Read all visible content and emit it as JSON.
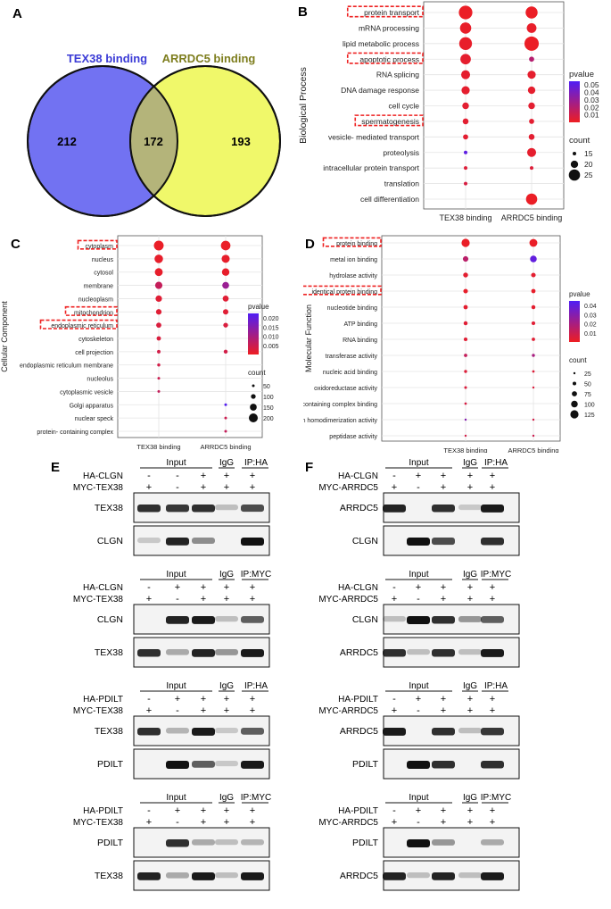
{
  "panels": {
    "A": {
      "letter": "A",
      "left_title": "TEX38 binding",
      "right_title": "ARRDC5 binding",
      "left_only": "212",
      "overlap": "172",
      "right_only": "193",
      "left_color": "#7272f2",
      "right_color": "#f0f86a",
      "overlap_color": "#b4b47a"
    },
    "B": {
      "letter": "B"
    },
    "C": {
      "letter": "C"
    },
    "D": {
      "letter": "D"
    },
    "E": {
      "letter": "E"
    },
    "F": {
      "letter": "F"
    }
  },
  "chart_data": [
    {
      "panel": "B",
      "type": "scatter",
      "ylabel": "Biological Process",
      "categories": [
        "TEX38 binding",
        "ARRDC5 binding"
      ],
      "terms": [
        "protein transport",
        "mRNA processing",
        "lipid metabolic process",
        "apoptotic process",
        "RNA splicing",
        "DNA damage response",
        "cell cycle",
        "spermatogenesis",
        "vesicle- mediated transport",
        "proteolysis",
        "intracellular protein transport",
        "translation",
        "cell differentiation"
      ],
      "highlighted": [
        "protein transport",
        "apoptotic process",
        "spermatogenesis"
      ],
      "series": [
        {
          "category": "TEX38 binding",
          "count": [
            28,
            25,
            27,
            24,
            22,
            21,
            19,
            18,
            17,
            15,
            11,
            10,
            null
          ],
          "pvalue": [
            0.001,
            0.002,
            0.002,
            0.003,
            0.003,
            0.003,
            0.004,
            0.004,
            0.004,
            0.05,
            0.006,
            0.008,
            null
          ]
        },
        {
          "category": "ARRDC5 binding",
          "count": [
            26,
            23,
            29,
            17,
            21,
            20,
            19,
            17,
            18,
            22,
            15,
            null,
            25
          ],
          "pvalue": [
            0.001,
            0.002,
            0.001,
            0.02,
            0.003,
            0.003,
            0.004,
            0.004,
            0.004,
            0.003,
            0.006,
            null,
            0.001
          ]
        }
      ],
      "legend_pvalue": {
        "title": "pvalue",
        "ticks": [
          "0.05",
          "0.04",
          "0.03",
          "0.02",
          "0.01"
        ]
      },
      "legend_count": {
        "title": "count",
        "labels": [
          "15",
          "20",
          "25"
        ],
        "values": [
          15,
          20,
          25
        ]
      }
    },
    {
      "panel": "C",
      "type": "scatter",
      "ylabel": "Cellular Component",
      "categories": [
        "TEX38 binding",
        "ARRDC5 binding"
      ],
      "terms": [
        "cytoplasm",
        "nucleus",
        "cytosol",
        "membrane",
        "nucleoplasm",
        "mitochondrion",
        "endoplasmic reticulum",
        "cytoskeleton",
        "cell projection",
        "endoplasmic reticulum membrane",
        "nucleolus",
        "cytoplasmic vesicle",
        "Golgi apparatus",
        "nuclear speck",
        "protein- containing complex"
      ],
      "highlighted": [
        "cytoplasm",
        "mitochondrion",
        "endoplasmic reticulum"
      ],
      "series": [
        {
          "category": "TEX38 binding",
          "count": [
            220,
            190,
            175,
            160,
            140,
            120,
            110,
            90,
            70,
            60,
            50,
            40,
            null,
            null,
            null
          ],
          "pvalue": [
            0.0005,
            0.001,
            0.001,
            0.006,
            0.002,
            0.002,
            0.003,
            0.003,
            0.004,
            0.004,
            0.005,
            0.006,
            null,
            null,
            null
          ]
        },
        {
          "category": "ARRDC5 binding",
          "count": [
            215,
            180,
            165,
            150,
            130,
            115,
            100,
            null,
            80,
            null,
            null,
            null,
            45,
            40,
            40
          ],
          "pvalue": [
            0.0005,
            0.001,
            0.001,
            0.012,
            0.002,
            0.002,
            0.003,
            null,
            0.004,
            null,
            null,
            null,
            0.022,
            0.005,
            0.006
          ]
        }
      ],
      "legend_pvalue": {
        "title": "pvalue",
        "ticks": [
          "0.020",
          "0.015",
          "0.010",
          "0.005"
        ]
      },
      "legend_count": {
        "title": "count",
        "labels": [
          "50",
          "100",
          "150",
          "200"
        ],
        "values": [
          50,
          100,
          150,
          200
        ]
      }
    },
    {
      "panel": "D",
      "type": "scatter",
      "ylabel": "Molecular Function",
      "categories": [
        "TEX38 binding",
        "ARRDC5 binding"
      ],
      "terms": [
        "protein binding",
        "metal ion binding",
        "hydrolase activity",
        "identical protein binding",
        "nucleotide binding",
        "ATP binding",
        "RNA binding",
        "transferase activity",
        "nucleic acid binding",
        "oxidoreductase activity",
        "protein- containing complex binding",
        "protein homodimerization activity",
        "peptidase activity"
      ],
      "highlighted": [
        "protein binding",
        "identical protein binding"
      ],
      "series": [
        {
          "category": "TEX38 binding",
          "count": [
            125,
            80,
            70,
            65,
            60,
            55,
            50,
            45,
            40,
            35,
            30,
            25,
            20
          ],
          "pvalue": [
            0.001,
            0.015,
            0.003,
            0.002,
            0.003,
            0.004,
            0.004,
            0.012,
            0.005,
            0.006,
            0.007,
            0.03,
            0.008
          ]
        },
        {
          "category": "ARRDC5 binding",
          "count": [
            120,
            100,
            65,
            60,
            55,
            50,
            45,
            40,
            30,
            25,
            null,
            20,
            15
          ],
          "pvalue": [
            0.001,
            0.04,
            0.003,
            0.002,
            0.003,
            0.004,
            0.004,
            0.02,
            0.005,
            0.006,
            null,
            0.008,
            0.01
          ]
        }
      ],
      "legend_pvalue": {
        "title": "pvalue",
        "ticks": [
          "0.04",
          "0.03",
          "0.02",
          "0.01"
        ]
      },
      "legend_count": {
        "title": "count",
        "labels": [
          "25",
          "50",
          "75",
          "100",
          "125"
        ],
        "values": [
          25,
          50,
          75,
          100,
          125
        ]
      }
    }
  ],
  "blots": {
    "E": {
      "groups": [
        {
          "section_input": "Input",
          "section_igg": "IgG",
          "section_ip": "IP:HA",
          "ha_label": "HA-CLGN",
          "myc_label": "MYC-TEX38",
          "ha": [
            "-",
            "-",
            "+",
            "+",
            "+"
          ],
          "myc": [
            "+",
            "-",
            "+",
            "+",
            "+"
          ],
          "rows": [
            {
              "label": "TEX38",
              "bands": [
                0.85,
                0.8,
                0.85,
                0.1,
                0.7
              ]
            },
            {
              "label": "CLGN",
              "bands": [
                0.05,
                0.9,
                0.35,
                0.0,
                1.0
              ]
            }
          ]
        },
        {
          "section_input": "Input",
          "section_igg": "IgG",
          "section_ip": "IP:MYC",
          "ha_label": "HA-CLGN",
          "myc_label": "MYC-TEX38",
          "ha": [
            "-",
            "+",
            "+",
            "+",
            "+"
          ],
          "myc": [
            "+",
            "-",
            "+",
            "+",
            "+"
          ],
          "rows": [
            {
              "label": "CLGN",
              "bands": [
                0.0,
                0.9,
                0.95,
                0.1,
                0.6
              ]
            },
            {
              "label": "TEX38",
              "bands": [
                0.85,
                0.2,
                0.9,
                0.3,
                0.95
              ]
            }
          ]
        },
        {
          "section_input": "Input",
          "section_igg": "IgG",
          "section_ip": "IP:HA",
          "ha_label": "HA-PDILT",
          "myc_label": "MYC-TEX38",
          "ha": [
            "-",
            "+",
            "+",
            "+",
            "+"
          ],
          "myc": [
            "+",
            "-",
            "+",
            "+",
            "+"
          ],
          "rows": [
            {
              "label": "TEX38",
              "bands": [
                0.85,
                0.15,
                0.95,
                0.05,
                0.6
              ]
            },
            {
              "label": "PDILT",
              "bands": [
                0.0,
                1.0,
                0.6,
                0.05,
                0.95
              ]
            }
          ]
        },
        {
          "section_input": "Input",
          "section_igg": "IgG",
          "section_ip": "IP:MYC",
          "ha_label": "HA-PDILT",
          "myc_label": "MYC-TEX38",
          "ha": [
            "-",
            "+",
            "+",
            "+",
            "+"
          ],
          "myc": [
            "+",
            "-",
            "+",
            "+",
            "+"
          ],
          "rows": [
            {
              "label": "PDILT",
              "bands": [
                0.0,
                0.85,
                0.2,
                0.1,
                0.15
              ]
            },
            {
              "label": "TEX38",
              "bands": [
                0.9,
                0.2,
                0.95,
                0.1,
                0.95
              ]
            }
          ]
        }
      ]
    },
    "F": {
      "groups": [
        {
          "section_input": "Input",
          "section_igg": "IgG",
          "section_ip": "IP:HA",
          "ha_label": "HA-CLGN",
          "myc_label": "MYC-ARRDC5",
          "ha": [
            "-",
            "+",
            "+",
            "+",
            "+"
          ],
          "myc": [
            "+",
            "-",
            "+",
            "+",
            "+"
          ],
          "rows": [
            {
              "label": "ARRDC5",
              "bands": [
                0.9,
                0.0,
                0.85,
                0.05,
                0.95
              ]
            },
            {
              "label": "CLGN",
              "bands": [
                0.0,
                1.0,
                0.7,
                0.0,
                0.85
              ]
            }
          ]
        },
        {
          "section_input": "Input",
          "section_igg": "IgG",
          "section_ip": "IP:MYC",
          "ha_label": "HA-CLGN",
          "myc_label": "MYC-ARRDC5",
          "ha": [
            "-",
            "+",
            "+",
            "+",
            "+"
          ],
          "myc": [
            "+",
            "-",
            "+",
            "+",
            "+"
          ],
          "rows": [
            {
              "label": "CLGN",
              "bands": [
                0.1,
                1.0,
                0.85,
                0.3,
                0.6
              ]
            },
            {
              "label": "ARRDC5",
              "bands": [
                0.85,
                0.1,
                0.85,
                0.1,
                0.95
              ]
            }
          ]
        },
        {
          "section_input": "Input",
          "section_igg": "IgG",
          "section_ip": "IP:HA",
          "ha_label": "HA-PDILT",
          "myc_label": "MYC-ARRDC5",
          "ha": [
            "-",
            "+",
            "+",
            "+",
            "+"
          ],
          "myc": [
            "+",
            "-",
            "+",
            "+",
            "+"
          ],
          "rows": [
            {
              "label": "ARRDC5",
              "bands": [
                0.95,
                0.0,
                0.85,
                0.1,
                0.8
              ]
            },
            {
              "label": "PDILT",
              "bands": [
                0.0,
                1.0,
                0.85,
                0.0,
                0.85
              ]
            }
          ]
        },
        {
          "section_input": "Input",
          "section_igg": "IgG",
          "section_ip": "IP:MYC",
          "ha_label": "HA-PDILT",
          "myc_label": "MYC-ARRDC5",
          "ha": [
            "-",
            "+",
            "+",
            "+",
            "+"
          ],
          "myc": [
            "+",
            "-",
            "+",
            "+",
            "+"
          ],
          "rows": [
            {
              "label": "PDILT",
              "bands": [
                0.0,
                1.0,
                0.3,
                0.0,
                0.2
              ]
            },
            {
              "label": "ARRDC5",
              "bands": [
                0.9,
                0.1,
                0.9,
                0.1,
                0.95
              ]
            }
          ]
        }
      ]
    }
  }
}
